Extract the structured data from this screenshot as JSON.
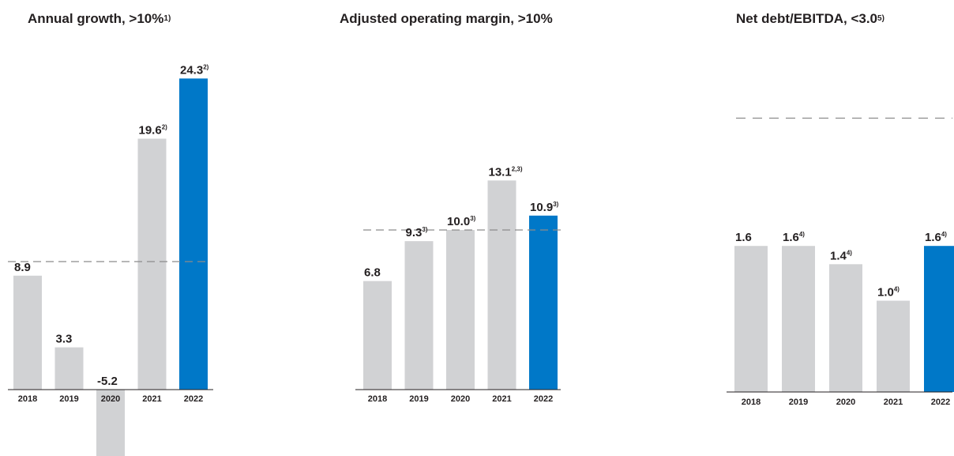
{
  "colors": {
    "bar": "#d1d2d4",
    "highlight": "#0078c8",
    "target_line": "#8c8c8c",
    "text": "#231f20"
  },
  "chart_data": [
    {
      "type": "bar",
      "title": "Annual growth, >10%",
      "title_sup": "1)",
      "categories": [
        "2018",
        "2019",
        "2020",
        "2021",
        "2022"
      ],
      "values": [
        8.9,
        3.3,
        -5.2,
        19.6,
        24.3
      ],
      "value_labels": [
        "8.9",
        "3.3",
        "-5.2",
        "19.6",
        "24.3"
      ],
      "value_sups": [
        "",
        "",
        "",
        "2)",
        "2)"
      ],
      "highlight_index": 4,
      "target": 10,
      "xlabel": "",
      "ylabel": "",
      "ylim": [
        -10,
        25
      ]
    },
    {
      "type": "bar",
      "title": "Adjusted operating margin, >10%",
      "title_sup": "",
      "categories": [
        "2018",
        "2019",
        "2020",
        "2021",
        "2022"
      ],
      "values": [
        6.8,
        9.3,
        10.0,
        13.1,
        10.9
      ],
      "value_labels": [
        "6.8",
        "9.3",
        "10.0",
        "13.1",
        "10.9"
      ],
      "value_sups": [
        "",
        "3)",
        "3)",
        "2,3)",
        "3)"
      ],
      "highlight_index": 4,
      "target": 10,
      "xlabel": "",
      "ylabel": "",
      "ylim": [
        0,
        25
      ]
    },
    {
      "type": "bar",
      "title": "Net debt/EBITDA, <3.0",
      "title_sup": "5)",
      "categories": [
        "2018",
        "2019",
        "2020",
        "2021",
        "2022"
      ],
      "values": [
        1.6,
        1.6,
        1.4,
        1.0,
        1.6
      ],
      "value_labels": [
        "1.6",
        "1.6",
        "1.4",
        "1.0",
        "1.6"
      ],
      "value_sups": [
        "",
        "4)",
        "4)",
        "4)",
        "4)"
      ],
      "highlight_index": 4,
      "target": 3.0,
      "xlabel": "",
      "ylabel": "",
      "ylim": [
        0,
        3.5
      ]
    }
  ]
}
